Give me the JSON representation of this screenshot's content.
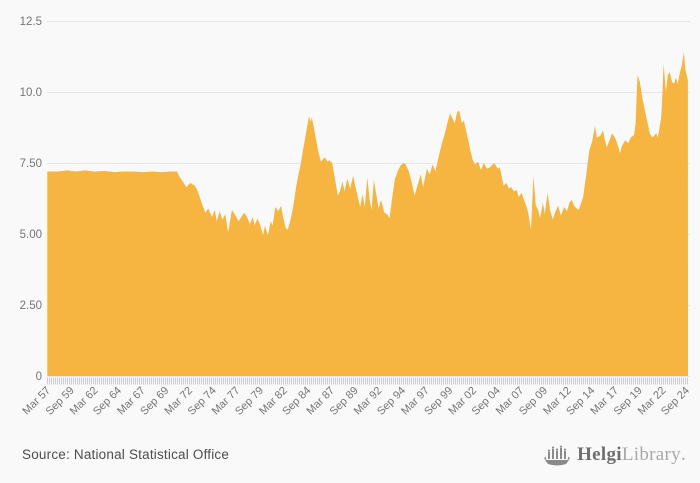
{
  "page": {
    "background": "#f9f9f9"
  },
  "chart_data": {
    "type": "area",
    "title": "",
    "fill_color": "#F6B440",
    "grid_color": "#e7e7e7",
    "tick_comb_color": "#c6cde2",
    "label_color": "#757575",
    "legend": "none",
    "grid": "horizontal",
    "x_axis": {
      "min": 1957.17,
      "max": 2024.67,
      "ticks": [
        {
          "label": "Mar 57",
          "t": 1957.17
        },
        {
          "label": "Sep 59",
          "t": 1959.67
        },
        {
          "label": "Mar 62",
          "t": 1962.17
        },
        {
          "label": "Sep 64",
          "t": 1964.67
        },
        {
          "label": "Mar 67",
          "t": 1967.17
        },
        {
          "label": "Sep 69",
          "t": 1969.67
        },
        {
          "label": "Mar 72",
          "t": 1972.17
        },
        {
          "label": "Sep 74",
          "t": 1974.67
        },
        {
          "label": "Mar 77",
          "t": 1977.17
        },
        {
          "label": "Sep 79",
          "t": 1979.67
        },
        {
          "label": "Mar 82",
          "t": 1982.17
        },
        {
          "label": "Sep 84",
          "t": 1984.67
        },
        {
          "label": "Mar 87",
          "t": 1987.17
        },
        {
          "label": "Sep 89",
          "t": 1989.67
        },
        {
          "label": "Mar 92",
          "t": 1992.17
        },
        {
          "label": "Sep 94",
          "t": 1994.67
        },
        {
          "label": "Mar 97",
          "t": 1997.17
        },
        {
          "label": "Sep 99",
          "t": 1999.67
        },
        {
          "label": "Mar 02",
          "t": 2002.17
        },
        {
          "label": "Sep 04",
          "t": 2004.67
        },
        {
          "label": "Mar 07",
          "t": 2007.17
        },
        {
          "label": "Sep 09",
          "t": 2009.67
        },
        {
          "label": "Mar 12",
          "t": 2012.17
        },
        {
          "label": "Sep 14",
          "t": 2014.67
        },
        {
          "label": "Mar 17",
          "t": 2017.17
        },
        {
          "label": "Sep 19",
          "t": 2019.67
        },
        {
          "label": "Mar 22",
          "t": 2022.17
        },
        {
          "label": "Sep 24",
          "t": 2024.67
        }
      ]
    },
    "y_axis": {
      "min": 0,
      "max": 12.5,
      "ticks": [
        {
          "label": "0",
          "v": 0
        },
        {
          "label": "2.50",
          "v": 2.5
        },
        {
          "label": "5.00",
          "v": 5
        },
        {
          "label": "7.50",
          "v": 7.5
        },
        {
          "label": "10.0",
          "v": 10
        },
        {
          "label": "12.5",
          "v": 12.5
        }
      ]
    },
    "series": [
      {
        "name": "value",
        "points": [
          [
            1957.2,
            7.2
          ],
          [
            1958.3,
            7.2
          ],
          [
            1959.3,
            7.24
          ],
          [
            1960.2,
            7.2
          ],
          [
            1961.2,
            7.24
          ],
          [
            1962.2,
            7.2
          ],
          [
            1963.3,
            7.22
          ],
          [
            1964.3,
            7.18
          ],
          [
            1965.3,
            7.2
          ],
          [
            1966.3,
            7.2
          ],
          [
            1967.3,
            7.18
          ],
          [
            1968.3,
            7.2
          ],
          [
            1969.3,
            7.18
          ],
          [
            1970.2,
            7.2
          ],
          [
            1970.9,
            7.2
          ],
          [
            1971.1,
            7.05
          ],
          [
            1971.5,
            6.85
          ],
          [
            1971.9,
            6.65
          ],
          [
            1972.3,
            6.8
          ],
          [
            1972.8,
            6.7
          ],
          [
            1973.1,
            6.5
          ],
          [
            1973.5,
            6.1
          ],
          [
            1973.9,
            5.75
          ],
          [
            1974.2,
            5.9
          ],
          [
            1974.6,
            5.6
          ],
          [
            1974.9,
            5.85
          ],
          [
            1975.1,
            5.45
          ],
          [
            1975.4,
            5.8
          ],
          [
            1975.7,
            5.5
          ],
          [
            1976,
            5.7
          ],
          [
            1976.3,
            5.05
          ],
          [
            1976.7,
            5.85
          ],
          [
            1977,
            5.7
          ],
          [
            1977.4,
            5.45
          ],
          [
            1978,
            5.75
          ],
          [
            1978.3,
            5.6
          ],
          [
            1978.6,
            5.35
          ],
          [
            1978.9,
            5.6
          ],
          [
            1979.1,
            5.3
          ],
          [
            1979.4,
            5.55
          ],
          [
            1979.7,
            5.3
          ],
          [
            1980,
            4.95
          ],
          [
            1980.2,
            5.3
          ],
          [
            1980.5,
            4.95
          ],
          [
            1980.8,
            5.45
          ],
          [
            1981,
            5.3
          ],
          [
            1981.3,
            5.95
          ],
          [
            1981.6,
            5.8
          ],
          [
            1981.9,
            6
          ],
          [
            1982.1,
            5.6
          ],
          [
            1982.4,
            5.2
          ],
          [
            1982.6,
            5.15
          ],
          [
            1982.9,
            5.5
          ],
          [
            1983.2,
            6
          ],
          [
            1983.5,
            6.7
          ],
          [
            1983.8,
            7.2
          ],
          [
            1984,
            7.5
          ],
          [
            1984.2,
            7.95
          ],
          [
            1984.4,
            8.3
          ],
          [
            1984.6,
            8.7
          ],
          [
            1984.85,
            9.15
          ],
          [
            1985,
            8.95
          ],
          [
            1985.15,
            9.1
          ],
          [
            1985.5,
            8.5
          ],
          [
            1985.8,
            7.95
          ],
          [
            1986.1,
            7.55
          ],
          [
            1986.5,
            7.7
          ],
          [
            1986.8,
            7.55
          ],
          [
            1987,
            7.6
          ],
          [
            1987.3,
            7.5
          ],
          [
            1987.6,
            6.9
          ],
          [
            1987.9,
            6.35
          ],
          [
            1988.1,
            6.5
          ],
          [
            1988.4,
            6.85
          ],
          [
            1988.6,
            6.5
          ],
          [
            1988.9,
            6.95
          ],
          [
            1989.2,
            6.6
          ],
          [
            1989.5,
            7.05
          ],
          [
            1989.8,
            6.6
          ],
          [
            1990,
            6.3
          ],
          [
            1990.25,
            5.95
          ],
          [
            1990.5,
            6.4
          ],
          [
            1990.75,
            5.95
          ],
          [
            1991,
            7
          ],
          [
            1991.25,
            6.2
          ],
          [
            1991.45,
            5.85
          ],
          [
            1991.7,
            6.9
          ],
          [
            1992,
            6.3
          ],
          [
            1992.2,
            5.9
          ],
          [
            1992.45,
            6.2
          ],
          [
            1992.8,
            5.75
          ],
          [
            1993.1,
            5.7
          ],
          [
            1993.35,
            5.55
          ],
          [
            1993.65,
            6.3
          ],
          [
            1993.9,
            6.9
          ],
          [
            1994.2,
            7.2
          ],
          [
            1994.5,
            7.4
          ],
          [
            1994.8,
            7.5
          ],
          [
            1995.05,
            7.45
          ],
          [
            1995.4,
            7.2
          ],
          [
            1995.7,
            6.8
          ],
          [
            1996,
            6.35
          ],
          [
            1996.3,
            6.7
          ],
          [
            1996.65,
            7.1
          ],
          [
            1996.9,
            6.65
          ],
          [
            1997.3,
            7.3
          ],
          [
            1997.6,
            7.1
          ],
          [
            1997.9,
            7.45
          ],
          [
            1998.2,
            7.2
          ],
          [
            1998.6,
            7.8
          ],
          [
            1998.9,
            8.2
          ],
          [
            1999.2,
            8.55
          ],
          [
            1999.5,
            8.95
          ],
          [
            1999.75,
            9.25
          ],
          [
            1999.95,
            9.1
          ],
          [
            2000.25,
            8.9
          ],
          [
            2000.5,
            9.3
          ],
          [
            2000.7,
            9.35
          ],
          [
            2001,
            8.9
          ],
          [
            2001.2,
            9
          ],
          [
            2001.6,
            8.4
          ],
          [
            2001.85,
            8
          ],
          [
            2002.15,
            7.6
          ],
          [
            2002.4,
            7.45
          ],
          [
            2002.7,
            7.55
          ],
          [
            2003,
            7.25
          ],
          [
            2003.3,
            7.5
          ],
          [
            2003.65,
            7.3
          ],
          [
            2003.95,
            7.35
          ],
          [
            2004.4,
            7.5
          ],
          [
            2004.8,
            7.3
          ],
          [
            2005,
            7.35
          ],
          [
            2005.4,
            6.7
          ],
          [
            2005.7,
            6.8
          ],
          [
            2005.95,
            6.6
          ],
          [
            2006.2,
            6.65
          ],
          [
            2006.5,
            6.5
          ],
          [
            2006.8,
            6.55
          ],
          [
            2007,
            6.3
          ],
          [
            2007.3,
            6.45
          ],
          [
            2007.55,
            6.2
          ],
          [
            2007.8,
            6
          ],
          [
            2008,
            5.75
          ],
          [
            2008.3,
            5.15
          ],
          [
            2008.55,
            7.05
          ],
          [
            2008.8,
            6
          ],
          [
            2009.05,
            5.85
          ],
          [
            2009.25,
            5.55
          ],
          [
            2009.55,
            6.1
          ],
          [
            2009.75,
            5.7
          ],
          [
            2010.05,
            6.45
          ],
          [
            2010.3,
            5.85
          ],
          [
            2010.6,
            5.5
          ],
          [
            2010.9,
            5.8
          ],
          [
            2011.15,
            6
          ],
          [
            2011.45,
            5.65
          ],
          [
            2011.8,
            5.95
          ],
          [
            2012.1,
            5.8
          ],
          [
            2012.35,
            6.1
          ],
          [
            2012.6,
            6.2
          ],
          [
            2012.85,
            6
          ],
          [
            2013.1,
            5.9
          ],
          [
            2013.35,
            5.85
          ],
          [
            2013.6,
            6.1
          ],
          [
            2013.8,
            6.3
          ],
          [
            2014.1,
            7
          ],
          [
            2014.45,
            7.95
          ],
          [
            2014.75,
            8.25
          ],
          [
            2015.05,
            8.8
          ],
          [
            2015.25,
            8.4
          ],
          [
            2015.6,
            8.45
          ],
          [
            2015.9,
            8.65
          ],
          [
            2016.1,
            8.3
          ],
          [
            2016.3,
            8.05
          ],
          [
            2016.65,
            8.35
          ],
          [
            2016.85,
            8.55
          ],
          [
            2017.15,
            8.4
          ],
          [
            2017.4,
            8.2
          ],
          [
            2017.7,
            7.85
          ],
          [
            2017.9,
            8.1
          ],
          [
            2018.25,
            8.3
          ],
          [
            2018.55,
            8.2
          ],
          [
            2018.85,
            8.4
          ],
          [
            2019.05,
            8.45
          ],
          [
            2019.2,
            8.5
          ],
          [
            2019.35,
            8.9
          ],
          [
            2019.55,
            10.6
          ],
          [
            2019.8,
            10.35
          ],
          [
            2020.05,
            9.8
          ],
          [
            2020.3,
            9.4
          ],
          [
            2020.55,
            9
          ],
          [
            2020.85,
            8.55
          ],
          [
            2021.1,
            8.4
          ],
          [
            2021.3,
            8.45
          ],
          [
            2021.5,
            8.55
          ],
          [
            2021.7,
            8.4
          ],
          [
            2021.9,
            8.8
          ],
          [
            2022.05,
            9.1
          ],
          [
            2022.15,
            9.7
          ],
          [
            2022.3,
            11
          ],
          [
            2022.55,
            10
          ],
          [
            2022.75,
            10.6
          ],
          [
            2022.95,
            10.7
          ],
          [
            2023.2,
            10.35
          ],
          [
            2023.4,
            10.3
          ],
          [
            2023.6,
            10.5
          ],
          [
            2023.8,
            10.3
          ],
          [
            2024,
            10.65
          ],
          [
            2024.2,
            10.9
          ],
          [
            2024.45,
            11.4
          ],
          [
            2024.6,
            10.8
          ],
          [
            2024.87,
            10.4
          ]
        ]
      }
    ]
  },
  "footer": {
    "source": "Source: National Statistical Office",
    "logo": {
      "part1": "Helgi",
      "part2": "Library",
      "suffix": ".",
      "icon": "viking-ship-icon",
      "icon_color": "#8a8a8a"
    }
  }
}
